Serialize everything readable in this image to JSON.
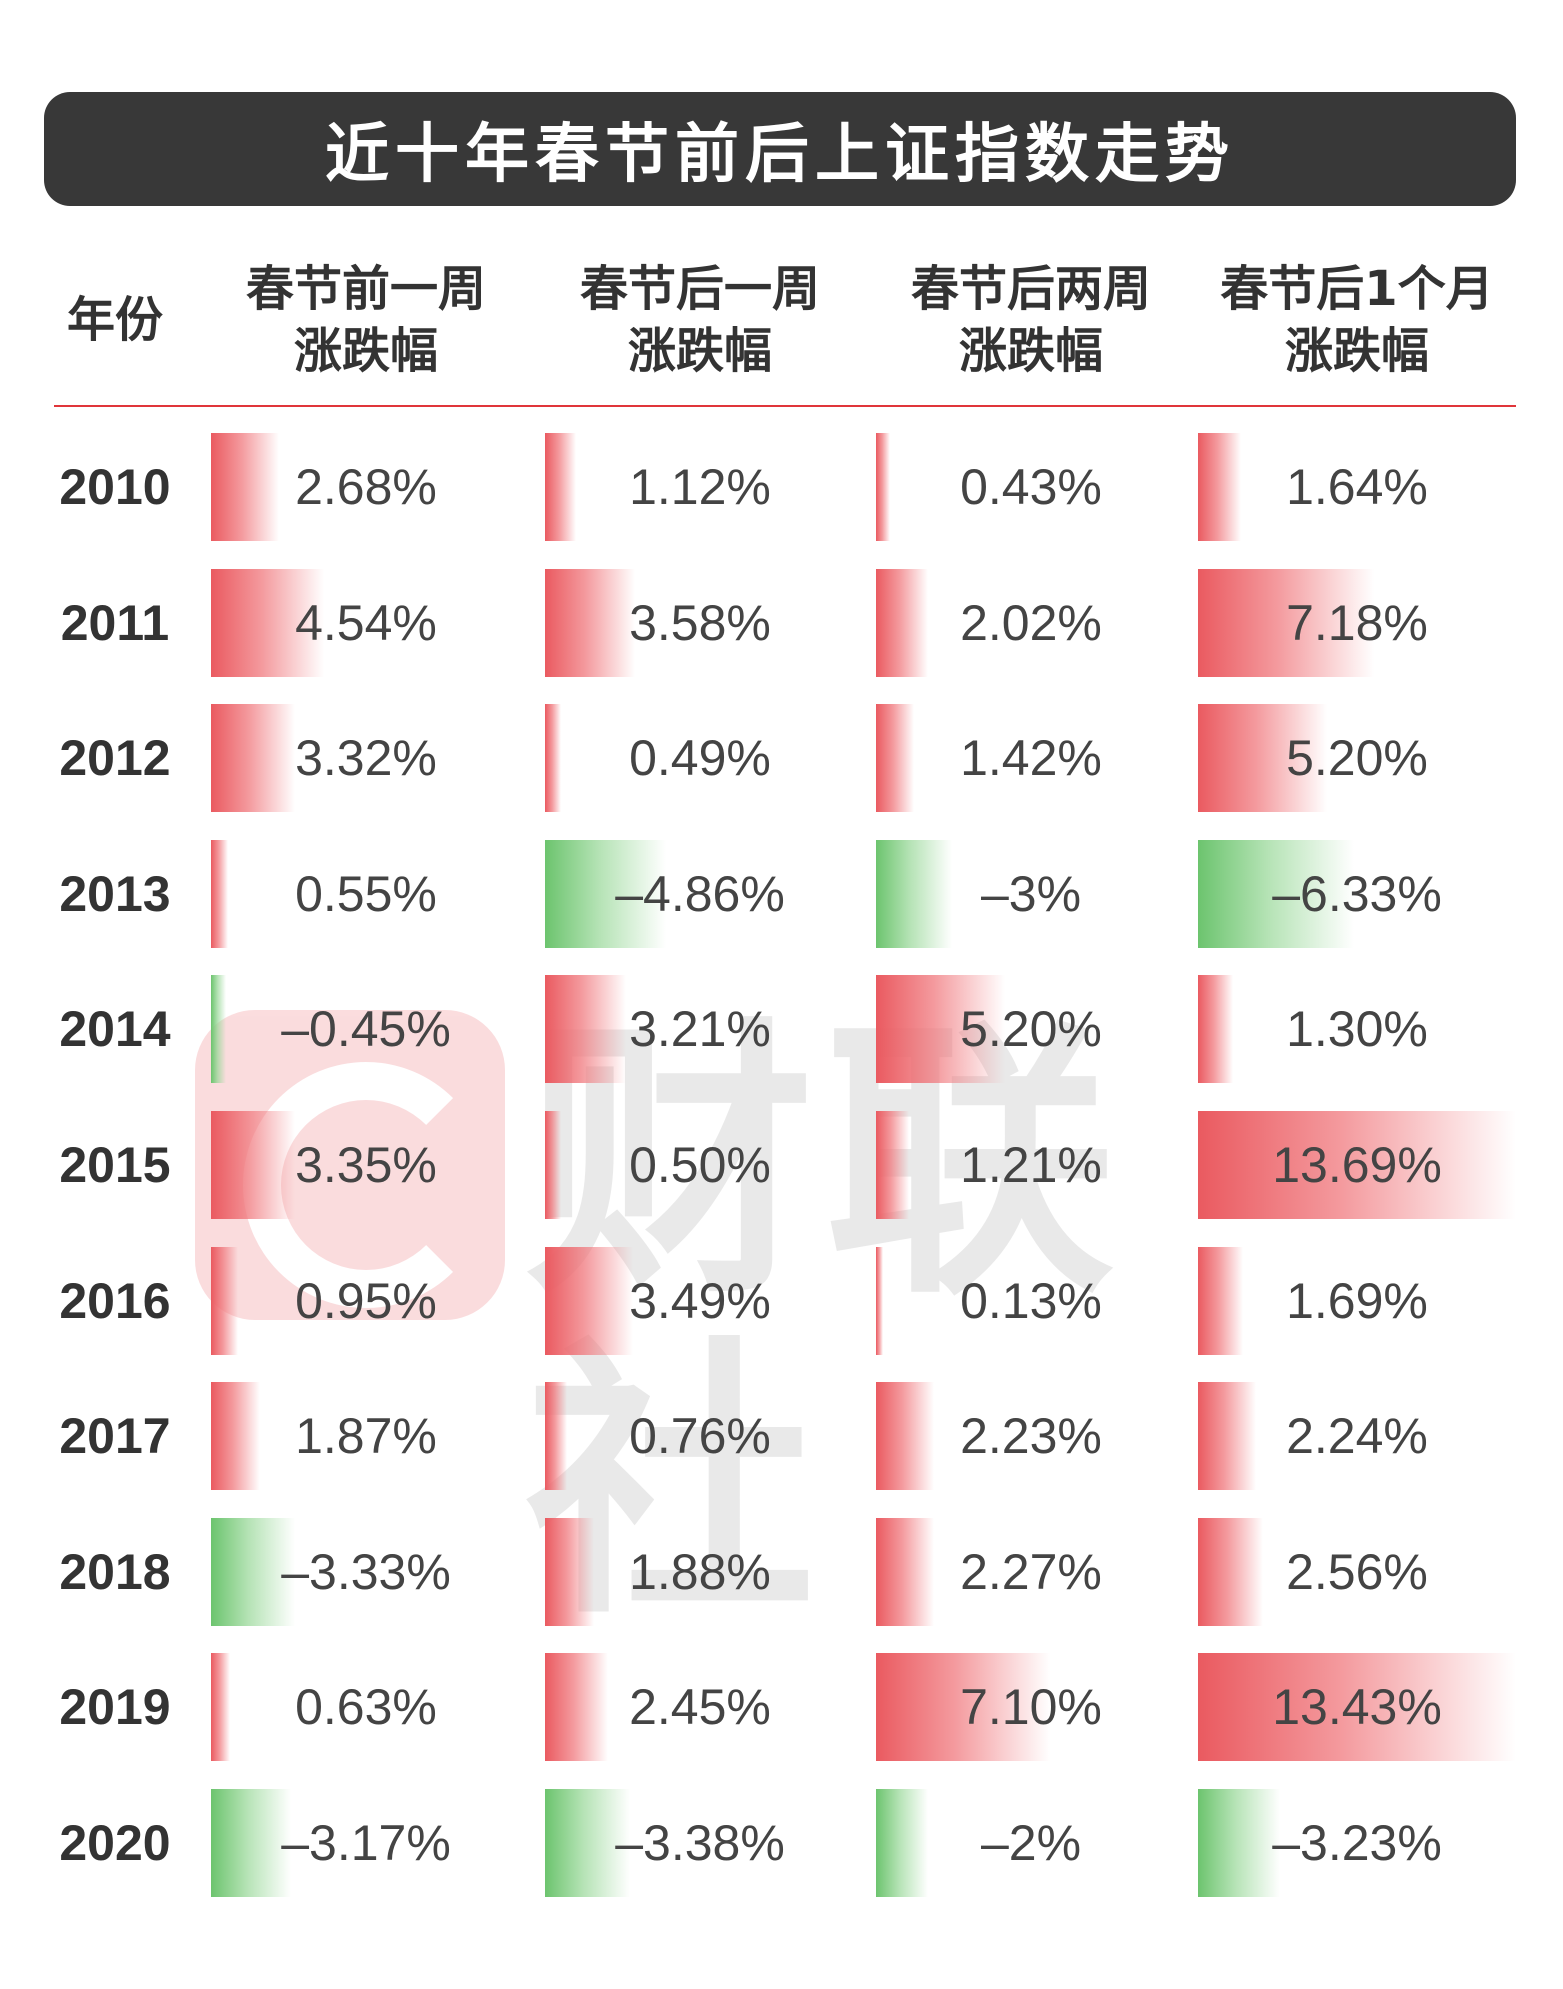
{
  "chart_data": {
    "type": "table",
    "title": "近十年春节前后上证指数走势",
    "year_header": "年份",
    "columns": [
      {
        "key": "pre_week",
        "line1": "春节前一周",
        "line2": "涨跌幅"
      },
      {
        "key": "post_week",
        "line1": "春节后一周",
        "line2": "涨跌幅"
      },
      {
        "key": "post_two_weeks",
        "line1": "春节后两周",
        "line2": "涨跌幅"
      },
      {
        "key": "post_month",
        "line1": "春节后1个月",
        "line2": "涨跌幅"
      }
    ],
    "rows": [
      {
        "year": "2010",
        "labels": [
          "2.68%",
          "1.12%",
          "0.43%",
          "1.64%"
        ],
        "values": [
          2.68,
          1.12,
          0.43,
          1.64
        ]
      },
      {
        "year": "2011",
        "labels": [
          "4.54%",
          "3.58%",
          "2.02%",
          "7.18%"
        ],
        "values": [
          4.54,
          3.58,
          2.02,
          7.18
        ]
      },
      {
        "year": "2012",
        "labels": [
          "3.32%",
          "0.49%",
          "1.42%",
          "5.20%"
        ],
        "values": [
          3.32,
          0.49,
          1.42,
          5.2
        ]
      },
      {
        "year": "2013",
        "labels": [
          "0.55%",
          "–4.86%",
          "–3%",
          "–6.33%"
        ],
        "values": [
          0.55,
          -4.86,
          -3,
          -6.33
        ]
      },
      {
        "year": "2014",
        "labels": [
          "–0.45%",
          "3.21%",
          "5.20%",
          "1.30%"
        ],
        "values": [
          -0.45,
          3.21,
          5.2,
          1.3
        ]
      },
      {
        "year": "2015",
        "labels": [
          "3.35%",
          "0.50%",
          "1.21%",
          "13.69%"
        ],
        "values": [
          3.35,
          0.5,
          1.21,
          13.69
        ]
      },
      {
        "year": "2016",
        "labels": [
          "0.95%",
          "3.49%",
          "0.13%",
          "1.69%"
        ],
        "values": [
          0.95,
          3.49,
          0.13,
          1.69
        ]
      },
      {
        "year": "2017",
        "labels": [
          "1.87%",
          "0.76%",
          "2.23%",
          "2.24%"
        ],
        "values": [
          1.87,
          0.76,
          2.23,
          2.24
        ]
      },
      {
        "year": "2018",
        "labels": [
          "–3.33%",
          "1.88%",
          "2.27%",
          "2.56%"
        ],
        "values": [
          -3.33,
          1.88,
          2.27,
          2.56
        ]
      },
      {
        "year": "2019",
        "labels": [
          "0.63%",
          "2.45%",
          "7.10%",
          "13.43%"
        ],
        "values": [
          0.63,
          2.45,
          7.1,
          13.43
        ]
      },
      {
        "year": "2020",
        "labels": [
          "–3.17%",
          "–3.38%",
          "–2%",
          "–3.23%"
        ],
        "values": [
          -3.17,
          -3.38,
          -2,
          -3.23
        ]
      }
    ],
    "positive_color": "#ea5a60",
    "negative_color": "#6cc46e"
  },
  "watermark": {
    "text": "财联社"
  }
}
